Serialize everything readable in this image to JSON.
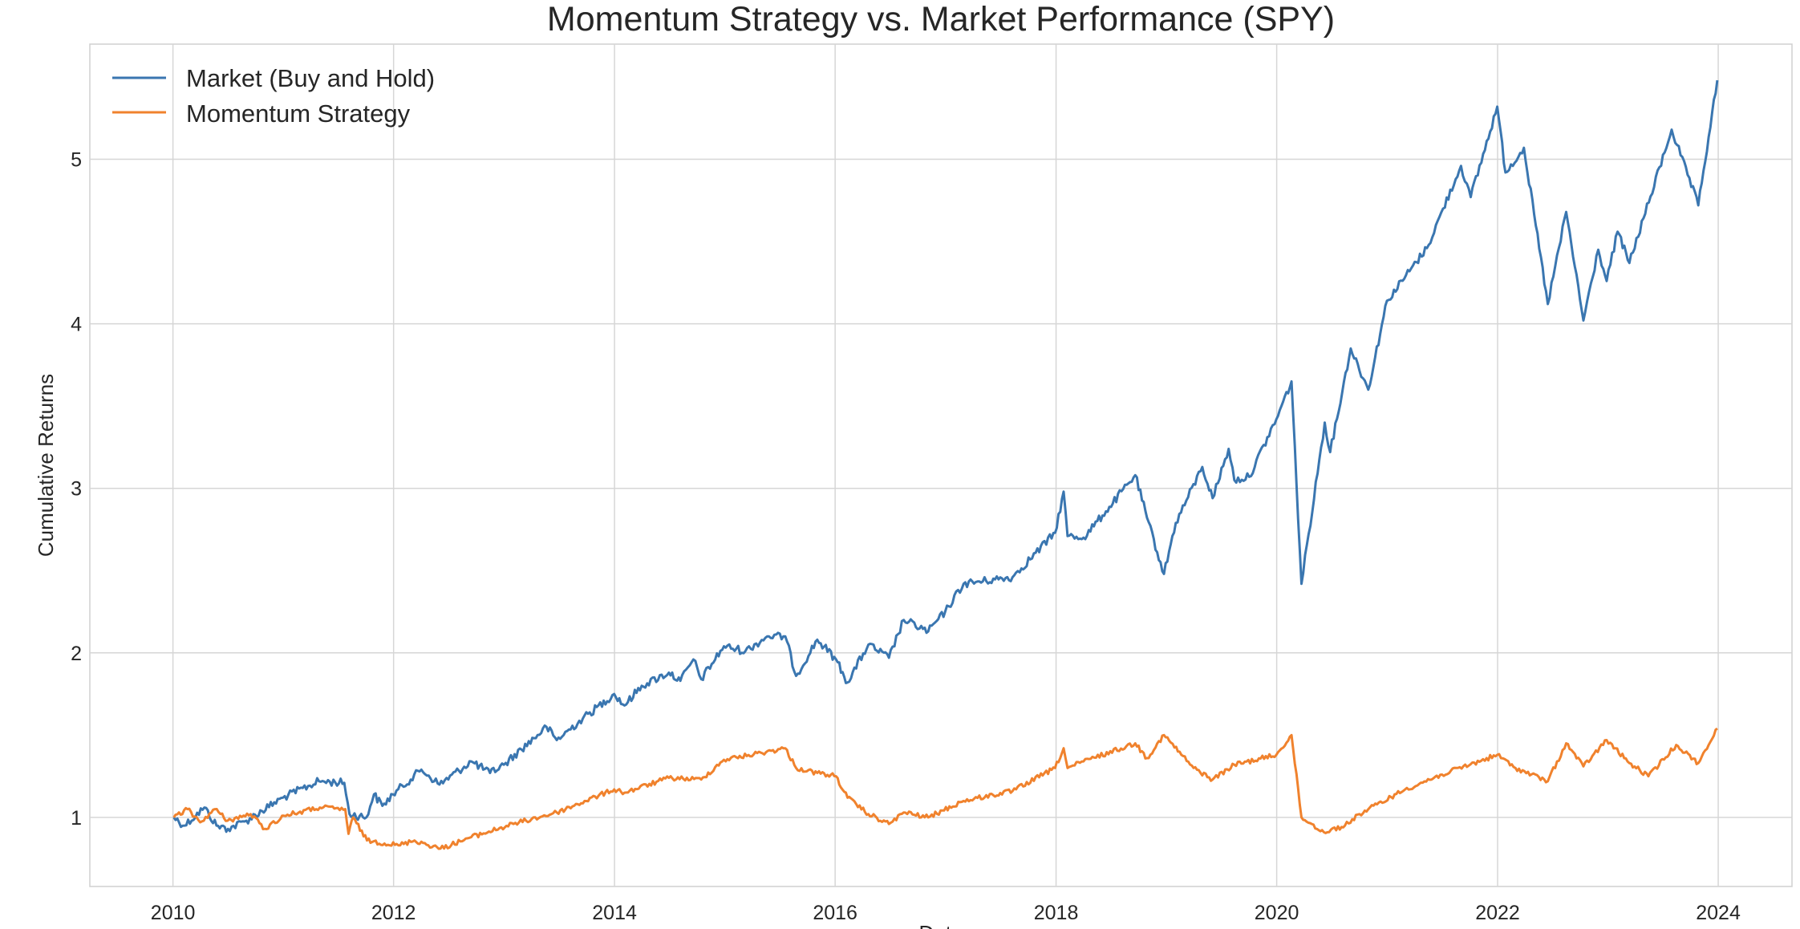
{
  "chart_data": {
    "type": "line",
    "title": "Momentum Strategy vs. Market Performance (SPY)",
    "xlabel": "Date",
    "ylabel": "Cumulative Returns",
    "xlim": [
      "2009-04-01",
      "2024-09-01"
    ],
    "ylim": [
      0.58,
      5.7
    ],
    "x_ticks": [
      "2010",
      "2012",
      "2014",
      "2016",
      "2018",
      "2020",
      "2022",
      "2024"
    ],
    "y_ticks": [
      "1",
      "2",
      "3",
      "4",
      "5"
    ],
    "grid": true,
    "legend_position": "top-left",
    "series": [
      {
        "name": "Market (Buy and Hold)",
        "color": "#3a76b0",
        "points": [
          [
            "2010-01-04",
            1.0
          ],
          [
            "2010-02-08",
            0.95
          ],
          [
            "2010-04-15",
            1.06
          ],
          [
            "2010-05-25",
            0.95
          ],
          [
            "2010-07-02",
            0.93
          ],
          [
            "2010-09-01",
            0.98
          ],
          [
            "2010-12-31",
            1.12
          ],
          [
            "2011-04-29",
            1.22
          ],
          [
            "2011-07-22",
            1.21
          ],
          [
            "2011-08-08",
            1.02
          ],
          [
            "2011-10-03",
            1.0
          ],
          [
            "2011-10-28",
            1.14
          ],
          [
            "2011-11-25",
            1.07
          ],
          [
            "2011-12-30",
            1.14
          ],
          [
            "2012-04-02",
            1.29
          ],
          [
            "2012-06-01",
            1.2
          ],
          [
            "2012-09-14",
            1.34
          ],
          [
            "2012-11-15",
            1.27
          ],
          [
            "2012-12-31",
            1.32
          ],
          [
            "2013-05-21",
            1.55
          ],
          [
            "2013-06-24",
            1.47
          ],
          [
            "2013-09-18",
            1.6
          ],
          [
            "2013-12-31",
            1.75
          ],
          [
            "2014-02-03",
            1.68
          ],
          [
            "2014-04-01",
            1.8
          ],
          [
            "2014-06-30",
            1.88
          ],
          [
            "2014-08-07",
            1.83
          ],
          [
            "2014-09-19",
            1.96
          ],
          [
            "2014-10-15",
            1.84
          ],
          [
            "2014-12-29",
            2.04
          ],
          [
            "2015-03-10",
            2.01
          ],
          [
            "2015-05-21",
            2.1
          ],
          [
            "2015-07-20",
            2.1
          ],
          [
            "2015-08-25",
            1.86
          ],
          [
            "2015-11-03",
            2.08
          ],
          [
            "2016-01-04",
            1.96
          ],
          [
            "2016-02-11",
            1.82
          ],
          [
            "2016-04-20",
            2.05
          ],
          [
            "2016-06-27",
            1.97
          ],
          [
            "2016-08-15",
            2.2
          ],
          [
            "2016-11-04",
            2.13
          ],
          [
            "2016-12-30",
            2.25
          ],
          [
            "2017-03-01",
            2.42
          ],
          [
            "2017-08-10",
            2.46
          ],
          [
            "2017-12-29",
            2.73
          ],
          [
            "2018-01-26",
            2.98
          ],
          [
            "2018-02-08",
            2.71
          ],
          [
            "2018-04-02",
            2.7
          ],
          [
            "2018-06-15",
            2.86
          ],
          [
            "2018-09-20",
            3.08
          ],
          [
            "2018-10-29",
            2.82
          ],
          [
            "2018-12-24",
            2.48
          ],
          [
            "2019-02-01",
            2.79
          ],
          [
            "2019-04-30",
            3.13
          ],
          [
            "2019-06-03",
            2.94
          ],
          [
            "2019-07-26",
            3.24
          ],
          [
            "2019-08-14",
            3.05
          ],
          [
            "2019-10-02",
            3.07
          ],
          [
            "2019-12-31",
            3.42
          ],
          [
            "2020-02-19",
            3.65
          ],
          [
            "2020-03-23",
            2.42
          ],
          [
            "2020-06-08",
            3.4
          ],
          [
            "2020-06-26",
            3.22
          ],
          [
            "2020-09-02",
            3.85
          ],
          [
            "2020-10-30",
            3.6
          ],
          [
            "2020-12-31",
            4.14
          ],
          [
            "2021-05-12",
            4.46
          ],
          [
            "2021-09-02",
            4.96
          ],
          [
            "2021-10-04",
            4.77
          ],
          [
            "2021-12-31",
            5.32
          ],
          [
            "2022-01-27",
            4.92
          ],
          [
            "2022-03-29",
            5.07
          ],
          [
            "2022-06-16",
            4.12
          ],
          [
            "2022-08-16",
            4.68
          ],
          [
            "2022-10-12",
            4.02
          ],
          [
            "2022-11-30",
            4.45
          ],
          [
            "2022-12-28",
            4.26
          ],
          [
            "2023-02-02",
            4.56
          ],
          [
            "2023-03-13",
            4.37
          ],
          [
            "2023-07-31",
            5.18
          ],
          [
            "2023-10-27",
            4.72
          ],
          [
            "2023-12-29",
            5.48
          ]
        ]
      },
      {
        "name": "Momentum Strategy",
        "color": "#f0822d",
        "points": [
          [
            "2010-01-04",
            1.0
          ],
          [
            "2010-02-18",
            1.05
          ],
          [
            "2010-04-01",
            0.97
          ],
          [
            "2010-05-20",
            1.05
          ],
          [
            "2010-07-01",
            0.98
          ],
          [
            "2010-09-15",
            1.02
          ],
          [
            "2010-11-01",
            0.93
          ],
          [
            "2011-01-03",
            1.01
          ],
          [
            "2011-05-02",
            1.06
          ],
          [
            "2011-07-25",
            1.05
          ],
          [
            "2011-08-05",
            0.9
          ],
          [
            "2011-08-20",
            1.0
          ],
          [
            "2011-10-05",
            0.86
          ],
          [
            "2012-01-17",
            0.83
          ],
          [
            "2012-03-10",
            0.86
          ],
          [
            "2012-06-04",
            0.81
          ],
          [
            "2012-09-14",
            0.88
          ],
          [
            "2013-02-01",
            0.96
          ],
          [
            "2013-06-24",
            1.03
          ],
          [
            "2013-12-31",
            1.17
          ],
          [
            "2014-02-03",
            1.15
          ],
          [
            "2014-06-30",
            1.24
          ],
          [
            "2014-10-15",
            1.23
          ],
          [
            "2014-12-29",
            1.35
          ],
          [
            "2015-07-20",
            1.42
          ],
          [
            "2015-08-25",
            1.3
          ],
          [
            "2015-11-03",
            1.27
          ],
          [
            "2016-01-04",
            1.25
          ],
          [
            "2016-02-11",
            1.12
          ],
          [
            "2016-04-20",
            1.02
          ],
          [
            "2016-06-27",
            0.96
          ],
          [
            "2016-08-15",
            1.03
          ],
          [
            "2016-11-04",
            1.0
          ],
          [
            "2017-03-01",
            1.1
          ],
          [
            "2017-08-10",
            1.16
          ],
          [
            "2017-12-29",
            1.3
          ],
          [
            "2018-01-26",
            1.42
          ],
          [
            "2018-02-08",
            1.3
          ],
          [
            "2018-04-02",
            1.34
          ],
          [
            "2018-09-20",
            1.45
          ],
          [
            "2018-10-29",
            1.36
          ],
          [
            "2018-12-24",
            1.5
          ],
          [
            "2019-04-01",
            1.3
          ],
          [
            "2019-06-03",
            1.23
          ],
          [
            "2019-08-14",
            1.32
          ],
          [
            "2019-12-31",
            1.38
          ],
          [
            "2020-02-19",
            1.5
          ],
          [
            "2020-03-23",
            1.0
          ],
          [
            "2020-06-05",
            0.91
          ],
          [
            "2020-08-14",
            0.95
          ],
          [
            "2020-10-01",
            1.02
          ],
          [
            "2021-03-01",
            1.17
          ],
          [
            "2021-07-01",
            1.26
          ],
          [
            "2021-12-31",
            1.38
          ],
          [
            "2022-03-01",
            1.3
          ],
          [
            "2022-06-16",
            1.22
          ],
          [
            "2022-08-16",
            1.45
          ],
          [
            "2022-10-12",
            1.31
          ],
          [
            "2022-12-28",
            1.47
          ],
          [
            "2023-03-13",
            1.33
          ],
          [
            "2023-05-15",
            1.25
          ],
          [
            "2023-08-15",
            1.44
          ],
          [
            "2023-10-27",
            1.33
          ],
          [
            "2023-12-29",
            1.54
          ]
        ]
      }
    ]
  }
}
